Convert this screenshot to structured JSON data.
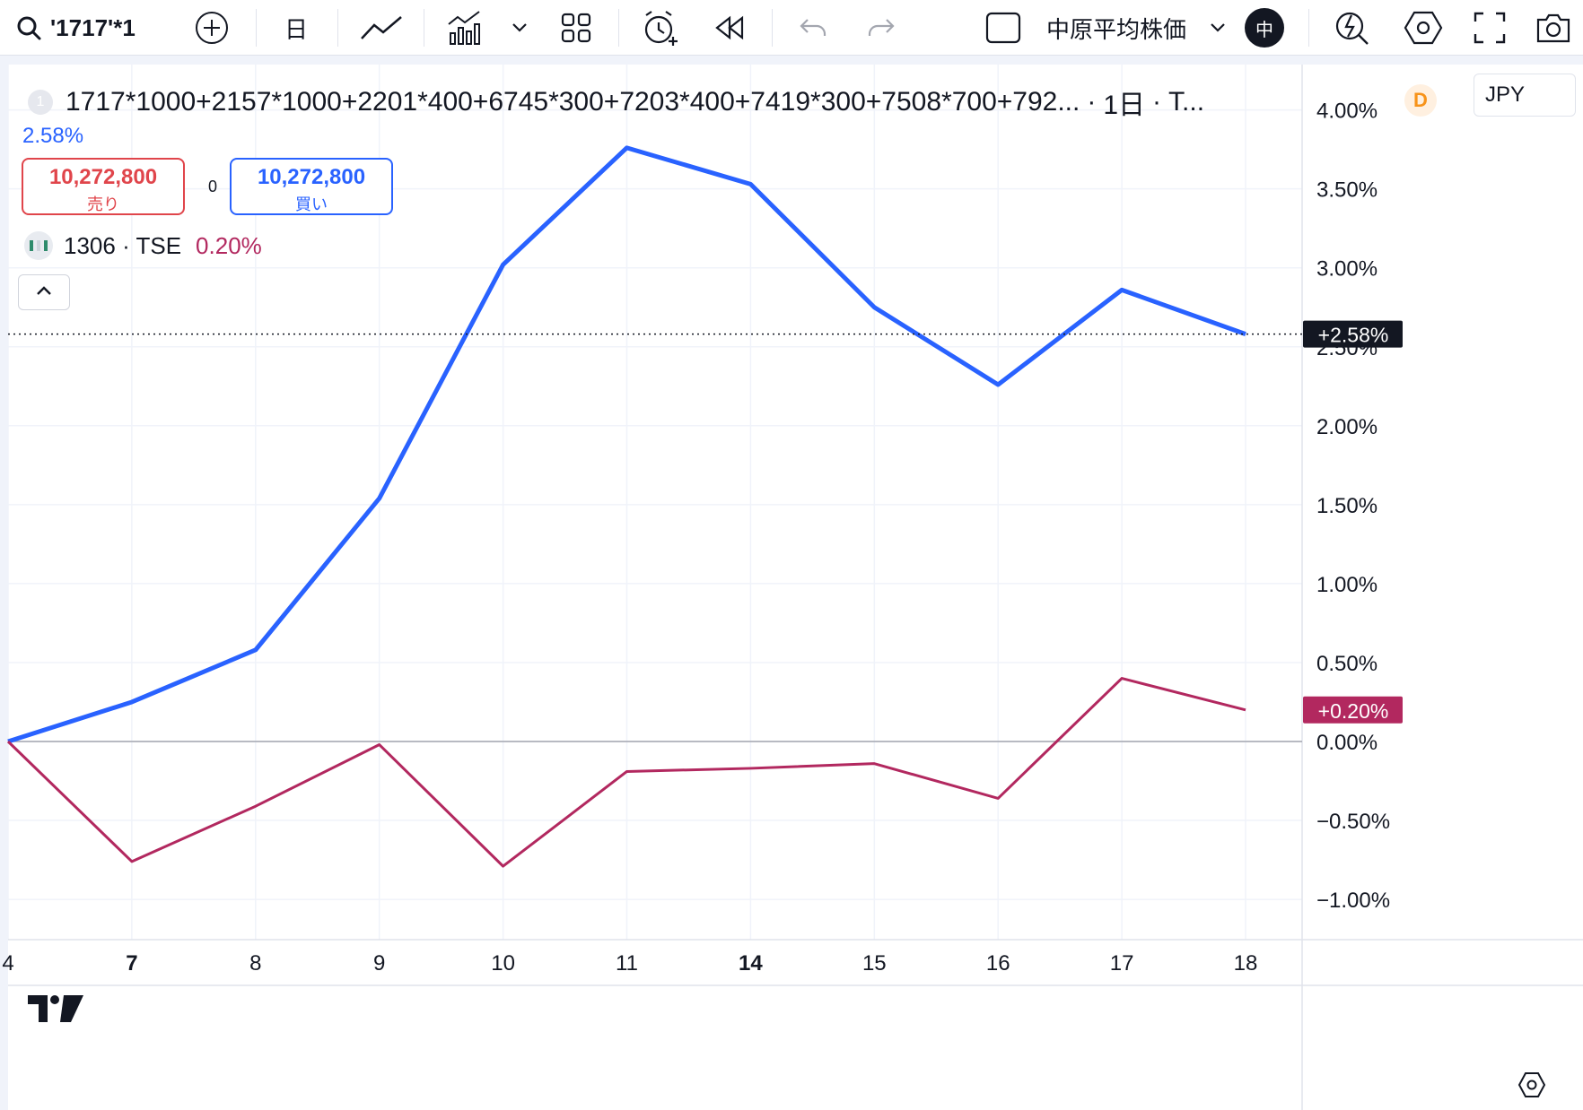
{
  "toolbar": {
    "search_text": "'1717'*1",
    "interval": "日",
    "index_label": "中原平均株価",
    "avatar_text": "中"
  },
  "legend": {
    "badge": "1",
    "expression": "1717*1000+2157*1000+2201*400+6745*300+7203*400+7419*300+7508*700+792...",
    "separator1": "·",
    "interval": "1日",
    "separator2": "·",
    "exchange": "T...",
    "data_badge": "D",
    "main_value": "2.58%",
    "sell_price": "10,272,800",
    "sell_label": "売り",
    "spread": "0",
    "buy_price": "10,272,800",
    "buy_label": "買い",
    "compare_symbol": "1306 · TSE",
    "compare_change": "0.20%"
  },
  "currency": "JPY",
  "colors": {
    "main_series": "#2962ff",
    "compare_series": "#b2285f",
    "grid": "#f0f3fa",
    "axis_text": "#131722"
  },
  "chart_data": {
    "type": "line",
    "x": [
      "4",
      "7",
      "8",
      "9",
      "10",
      "11",
      "14",
      "15",
      "16",
      "17",
      "18"
    ],
    "x_bold": [
      "7",
      "14"
    ],
    "series": [
      {
        "name": "1717*1000+2157*1000+2201*400+6745*300+7203*400+7419*300+7508*700+792...",
        "color": "#2962ff",
        "values": [
          0.0,
          0.25,
          0.58,
          1.54,
          3.02,
          3.76,
          3.53,
          2.75,
          2.26,
          2.86,
          2.58
        ],
        "last_label": "+2.58%"
      },
      {
        "name": "1306 · TSE",
        "color": "#b2285f",
        "values": [
          0.0,
          -0.76,
          -0.41,
          -0.02,
          -0.79,
          -0.19,
          -0.17,
          -0.14,
          -0.36,
          0.4,
          0.2
        ],
        "last_label": "+0.20%"
      }
    ],
    "y_ticks": [
      "4.00%",
      "3.50%",
      "3.00%",
      "2.50%",
      "2.00%",
      "1.50%",
      "1.00%",
      "0.50%",
      "0.00%",
      "−0.50%",
      "−1.00%"
    ],
    "y_tick_values": [
      4.0,
      3.5,
      3.0,
      2.5,
      2.0,
      1.5,
      1.0,
      0.5,
      0.0,
      -0.5,
      -1.0
    ],
    "ylim": [
      -1.25,
      4.05
    ],
    "grid": true,
    "zero_line": true
  }
}
